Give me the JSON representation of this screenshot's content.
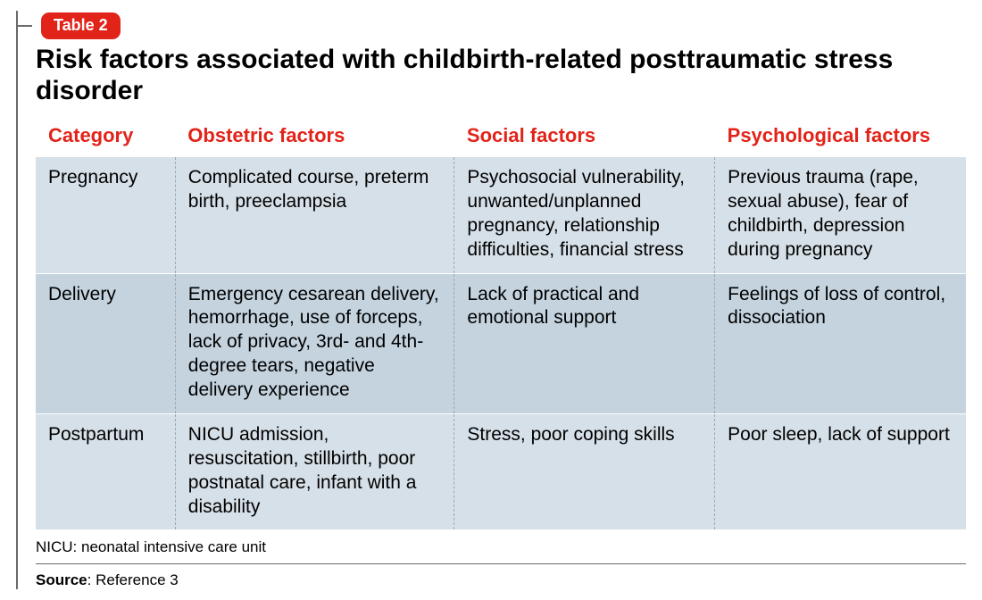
{
  "badge": {
    "label": "Table 2",
    "bg": "#e2231a",
    "fg": "#ffffff"
  },
  "title": {
    "text": "Risk factors associated with childbirth-related posttraumatic stress disorder",
    "fontsize": 30,
    "color": "#000000"
  },
  "table": {
    "header_color": "#e2231a",
    "header_fontsize": 22,
    "body_fontsize": 21,
    "body_color": "#000000",
    "row_bg_odd": "#d6e0e8",
    "row_bg_even": "#c4d3de",
    "col_widths": [
      "15%",
      "30%",
      "28%",
      "27%"
    ],
    "columns": [
      "Category",
      "Obstetric factors",
      "Social factors",
      "Psychological factors"
    ],
    "rows": [
      {
        "category": "Pregnancy",
        "obstetric": "Complicated course, preterm birth, preeclampsia",
        "social": "Psychosocial vulnerability, unwanted/unplanned pregnancy, relationship difficulties, financial stress",
        "psych": "Previous trauma (rape, sexual abuse), fear of childbirth, depression during pregnancy"
      },
      {
        "category": "Delivery",
        "obstetric": "Emergency cesarean delivery, hemorrhage, use of forceps, lack of privacy, 3rd- and 4th-degree tears, negative delivery experience",
        "social": "Lack of practical and emotional support",
        "psych": "Feelings of loss of control, dissociation"
      },
      {
        "category": "Postpartum",
        "obstetric": "NICU admission, resuscitation, stillbirth, poor postnatal care, infant with a disability",
        "social": "Stress, poor coping skills",
        "psych": "Poor sleep, lack of support"
      }
    ]
  },
  "footnote": {
    "text": "NICU: neonatal intensive care unit",
    "fontsize": 17
  },
  "source": {
    "label": "Source",
    "value": "Reference 3",
    "fontsize": 17
  }
}
